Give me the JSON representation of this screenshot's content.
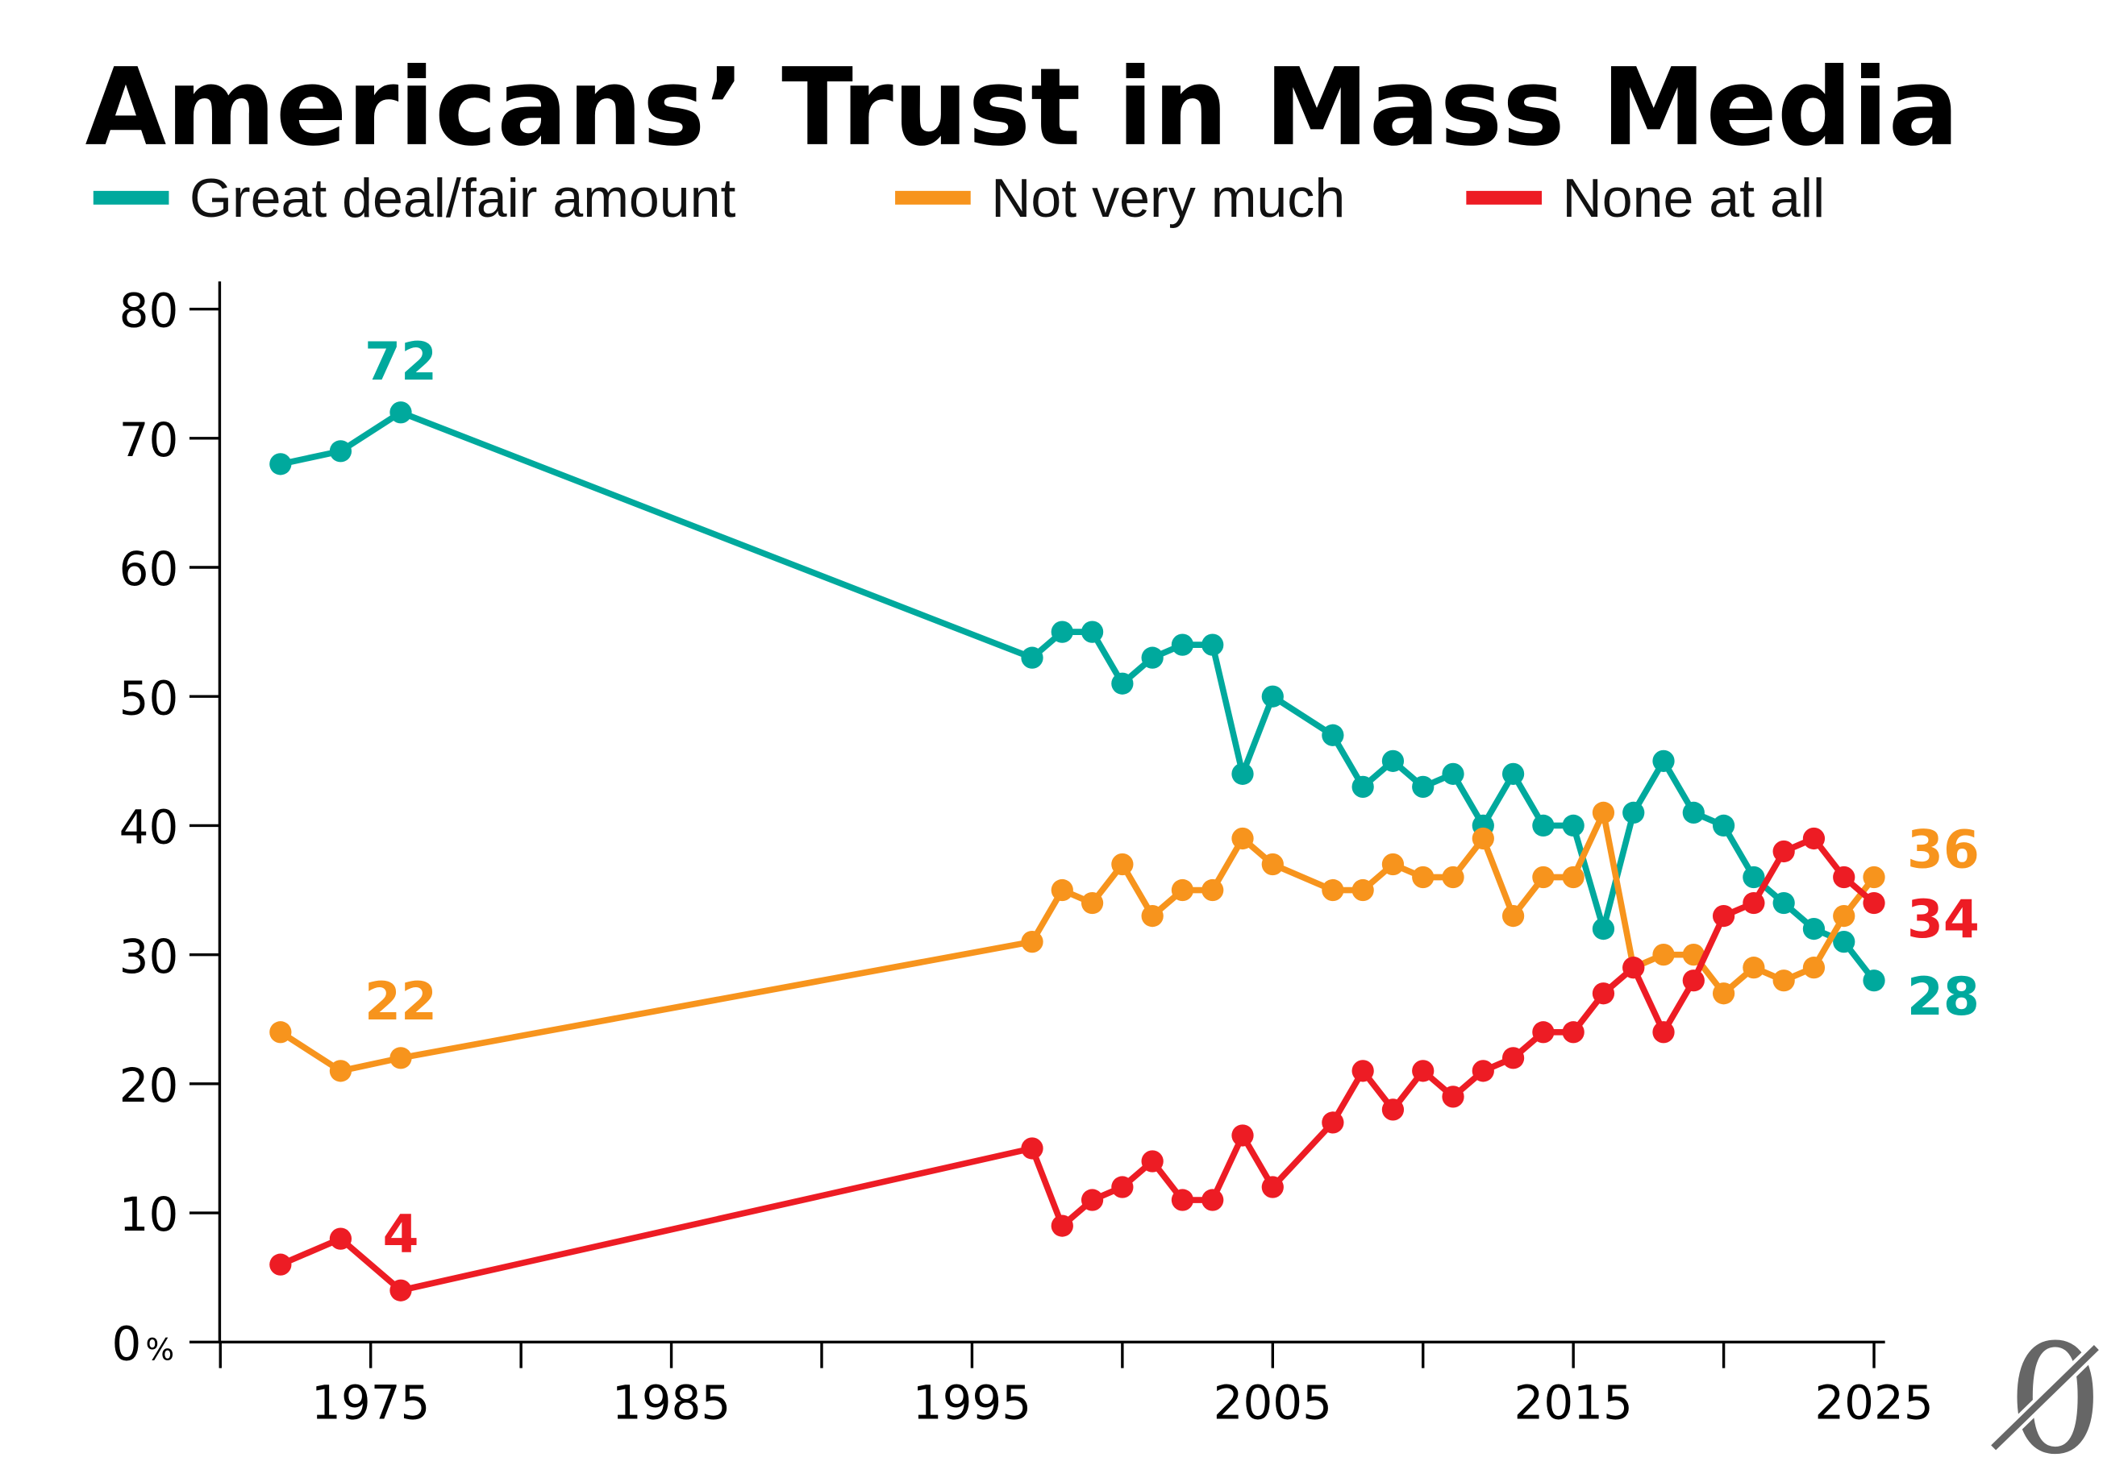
{
  "chart_data": {
    "type": "line",
    "title": "Americans’ Trust in Mass Media",
    "xlabel": "",
    "ylabel": "",
    "ylim": [
      0,
      80
    ],
    "xlim": [
      1970,
      2025
    ],
    "y_ticks": [
      "0",
      "10",
      "20",
      "30",
      "40",
      "50",
      "60",
      "70",
      "80"
    ],
    "y_unit": "%",
    "x_ticks": [
      "1975",
      "1985",
      "1995",
      "2005",
      "2015",
      "2025"
    ],
    "legend_position": "top",
    "grid": false,
    "x": [
      1972,
      1974,
      1976,
      1997,
      1998,
      1999,
      2000,
      2001,
      2002,
      2003,
      2004,
      2005,
      2007,
      2008,
      2009,
      2010,
      2011,
      2012,
      2013,
      2014,
      2015,
      2016,
      2017,
      2018,
      2019,
      2020,
      2021,
      2022,
      2023,
      2024,
      2025
    ],
    "series": [
      {
        "name": "Great deal/fair amount",
        "color": "#00a99d",
        "values": [
          68,
          69,
          72,
          53,
          55,
          55,
          51,
          53,
          54,
          54,
          44,
          50,
          47,
          43,
          45,
          43,
          44,
          40,
          44,
          40,
          40,
          32,
          41,
          45,
          41,
          40,
          36,
          34,
          32,
          31,
          28
        ],
        "annotations": [
          {
            "x": 1976,
            "text": "72"
          },
          {
            "x": 2025,
            "text": "28"
          }
        ]
      },
      {
        "name": "Not very much",
        "color": "#f7941d",
        "values": [
          24,
          21,
          22,
          31,
          35,
          34,
          37,
          33,
          35,
          35,
          39,
          37,
          35,
          35,
          37,
          36,
          36,
          39,
          33,
          36,
          36,
          41,
          29,
          30,
          30,
          27,
          29,
          28,
          29,
          33,
          36
        ],
        "annotations": [
          {
            "x": 1976,
            "text": "22"
          },
          {
            "x": 2025,
            "text": "36"
          }
        ]
      },
      {
        "name": "None at all",
        "color": "#ed1c24",
        "values": [
          6,
          8,
          4,
          15,
          9,
          11,
          12,
          14,
          11,
          11,
          16,
          12,
          17,
          21,
          18,
          21,
          19,
          21,
          22,
          24,
          24,
          27,
          29,
          24,
          28,
          33,
          34,
          38,
          39,
          36,
          34
        ],
        "annotations": [
          {
            "x": 1976,
            "text": "4"
          },
          {
            "x": 2025,
            "text": "34"
          }
        ]
      }
    ]
  },
  "logo_text": "0"
}
